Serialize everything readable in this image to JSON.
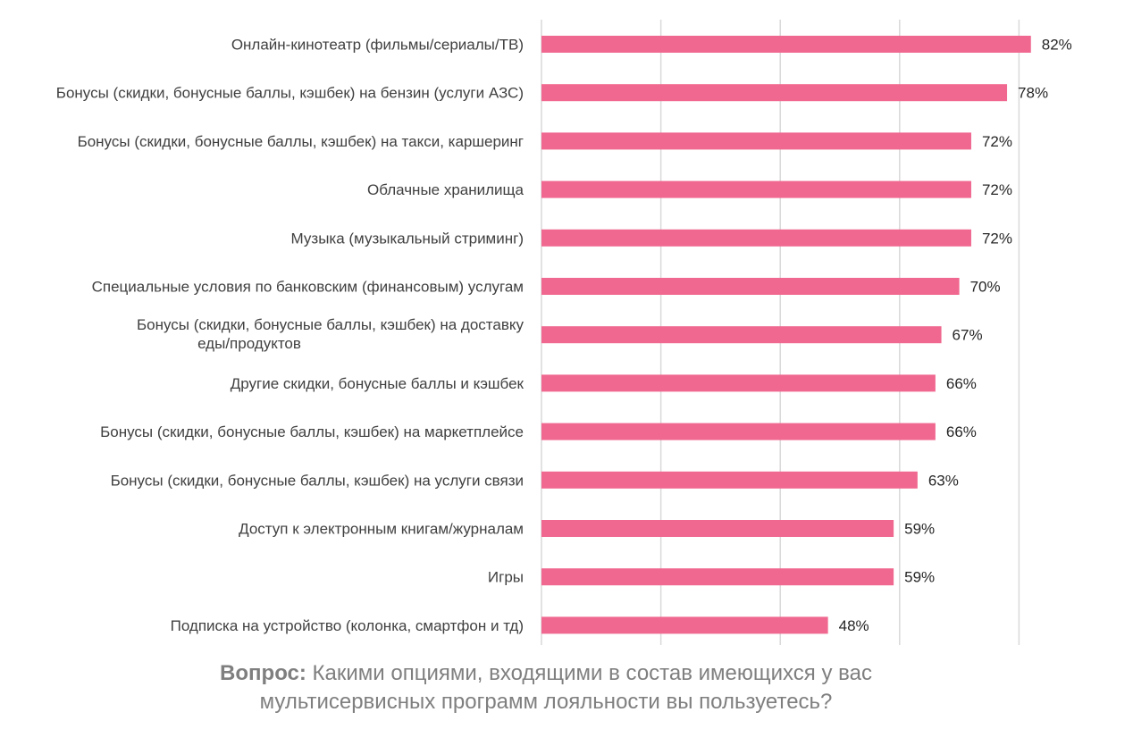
{
  "chart_data": {
    "type": "bar",
    "orientation": "horizontal",
    "categories": [
      [
        "Онлайн-кинотеатр (фильмы/сериалы/ТВ)"
      ],
      [
        "Бонусы (скидки, бонусные баллы, кэшбек) на бензин (услуги АЗС)"
      ],
      [
        "Бонусы (скидки, бонусные баллы, кэшбек) на такси, каршеринг"
      ],
      [
        "Облачные хранилища"
      ],
      [
        "Музыка (музыкальный стриминг)"
      ],
      [
        "Специальные условия по банковским (финансовым) услугам"
      ],
      [
        "Бонусы (скидки, бонусные баллы, кэшбек) на доставку",
        "еды/продуктов"
      ],
      [
        "Другие скидки, бонусные баллы и кэшбек"
      ],
      [
        "Бонусы (скидки, бонусные баллы, кэшбек) на маркетплейсе"
      ],
      [
        "Бонусы (скидки, бонусные баллы, кэшбек) на услуги связи"
      ],
      [
        "Доступ к электронным книгам/журналам"
      ],
      [
        "Игры"
      ],
      [
        "Подписка на устройство (колонка, смартфон и тд)"
      ]
    ],
    "values": [
      82,
      78,
      72,
      72,
      72,
      70,
      67,
      66,
      66,
      63,
      59,
      59,
      48
    ],
    "value_labels": [
      "82%",
      "78%",
      "72%",
      "72%",
      "72%",
      "70%",
      "67%",
      "66%",
      "66%",
      "63%",
      "59%",
      "59%",
      "48%"
    ],
    "xlim": [
      0,
      120
    ],
    "x_gridlines": [
      20,
      40,
      60,
      80,
      100,
      120
    ],
    "grid": true,
    "legend": "none",
    "bar_color": "#f0678f",
    "grid_color": "#d9d9d9"
  },
  "caption": {
    "bold": "Вопрос:",
    "line1": " Какими опциями, входящими в состав имеющихся у вас",
    "line2": "мультисервисных программ лояльности вы пользуетесь?"
  }
}
